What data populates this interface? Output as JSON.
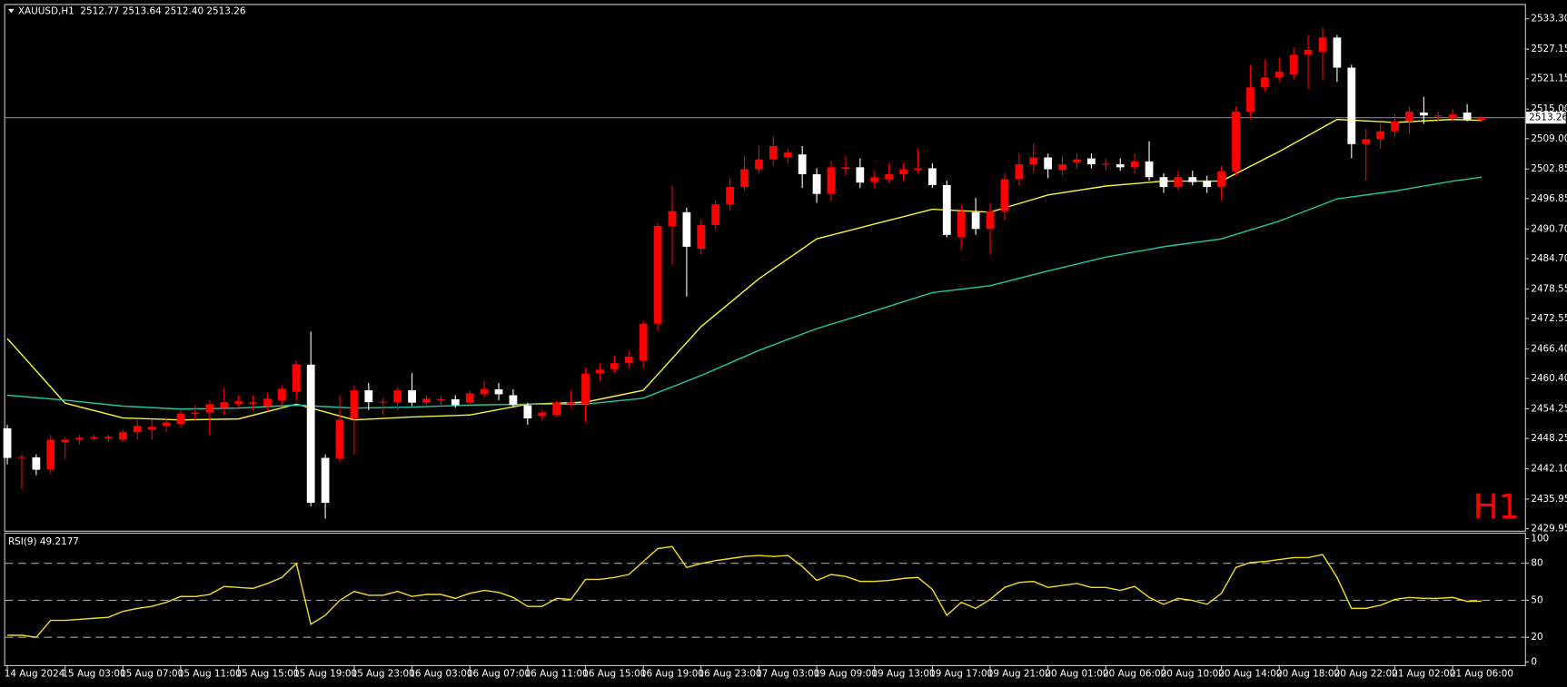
{
  "chart_data": [
    {
      "type": "candlestick",
      "title": "XAUUSD,H1  2512.77 2513.64 2512.40 2513.26",
      "annotation": "H1",
      "up_color": "#ff0000",
      "down_color": "#ffffff",
      "annotation_color": "#ff0000",
      "xlim": [
        -0.15,
        105
      ],
      "ylim": [
        2429.55,
        2536.1
      ],
      "yticks": [
        {
          "value": 2533.3,
          "label": "2533.30"
        },
        2527.15,
        2521.15,
        {
          "value": 2515,
          "label": "2515.00"
        },
        {
          "value": 2509,
          "label": "2509.00"
        },
        2502.85,
        2496.85,
        {
          "value": 2490.7,
          "label": "2490.70"
        },
        {
          "value": 2484.7,
          "label": "2484.70"
        },
        2478.55,
        2472.55,
        {
          "value": 2466.4,
          "label": "2466.40"
        },
        {
          "value": 2460.4,
          "label": "2460.40"
        },
        2454.25,
        2448.25,
        {
          "value": 2442.1,
          "label": "2442.10"
        },
        2435.95,
        2429.95
      ],
      "current_price": 2513.26,
      "current_price_color": "#778899",
      "open": [
        2450.3,
        2444.3,
        2444.4,
        2442,
        2447.5,
        2448,
        2448.2,
        2448.3,
        2448,
        2449.5,
        2450,
        2450.8,
        2451.2,
        2453.2,
        2453.5,
        2454.5,
        2455.3,
        2455.3,
        2454.8,
        2456,
        2457.7,
        2463.2,
        2444.3,
        2444.2,
        2452.3,
        2458,
        2455.5,
        2455.6,
        2458,
        2455.5,
        2456,
        2456.2,
        2455.5,
        2457.2,
        2458.2,
        2457,
        2455,
        2452.8,
        2453,
        2455.2,
        2455.2,
        2461.5,
        2462.3,
        2463.5,
        2464,
        2471.5,
        2491.2,
        2494.1,
        2486.7,
        2491.5,
        2495.7,
        2499.2,
        2502.8,
        2504.8,
        2505.2,
        2505.8,
        2501.8,
        2497.8,
        2502.9,
        2503.2,
        2500.2,
        2500.7,
        2501.8,
        2502.7,
        2503,
        2499.6,
        2489.1,
        2494.1,
        2490.7,
        2494.3,
        2500.8,
        2503.8,
        2505.2,
        2502.7,
        2504.2,
        2505,
        2503.7,
        2503.8,
        2503.2,
        2504.4,
        2501.2,
        2499.2,
        2501.2,
        2500.4,
        2499.2,
        2502.4,
        2514.5,
        2519.4,
        2521.4,
        2522,
        2526,
        2526.6,
        2529.5,
        2523.4,
        2507.9,
        2508.9,
        2510.5,
        2512.5,
        2514.3,
        2513.5,
        2513.1,
        2514.3,
        2512.77
      ],
      "high": [
        2451,
        2445,
        2445,
        2449,
        2448.5,
        2449,
        2449,
        2449,
        2450,
        2452,
        2452,
        2452.5,
        2454,
        2455,
        2456,
        2458.5,
        2457,
        2457,
        2457.5,
        2459,
        2464,
        2469.9,
        2445,
        2457,
        2459,
        2459.5,
        2456.5,
        2458.5,
        2461.5,
        2457,
        2457,
        2457,
        2458,
        2460,
        2459.5,
        2458.2,
        2455.5,
        2454,
        2456,
        2458,
        2462.5,
        2463.5,
        2465,
        2466,
        2472,
        2492,
        2499.5,
        2495,
        2492.5,
        2496.5,
        2501,
        2505.5,
        2507.5,
        2509.5,
        2507,
        2507.5,
        2503,
        2504.5,
        2505.5,
        2505,
        2502.5,
        2504,
        2504,
        2507,
        2504,
        2500.5,
        2495.5,
        2497,
        2496,
        2502,
        2506,
        2508,
        2506,
        2505.5,
        2506,
        2506,
        2505,
        2505,
        2506,
        2508.5,
        2502,
        2502.5,
        2502.5,
        2501.5,
        2503.5,
        2515.5,
        2524,
        2525,
        2525.5,
        2527.5,
        2530,
        2531.5,
        2530,
        2524,
        2511,
        2512,
        2514,
        2515.5,
        2517.5,
        2514.5,
        2515,
        2516,
        2513.64
      ],
      "low": [
        2443,
        2438,
        2440.8,
        2441,
        2444,
        2447,
        2447.8,
        2447.5,
        2447.5,
        2448,
        2448,
        2449.5,
        2450.5,
        2452,
        2449,
        2453,
        2454.5,
        2454,
        2454,
        2455,
        2456,
        2434.5,
        2432,
        2443.5,
        2445,
        2454,
        2453,
        2454,
        2454.8,
        2454.5,
        2455,
        2454.5,
        2455,
        2456.5,
        2456,
        2454.5,
        2451,
        2452,
        2452.5,
        2454.5,
        2451.5,
        2460,
        2461.5,
        2462.5,
        2462.5,
        2470,
        2483.5,
        2477,
        2485.5,
        2490.5,
        2494.5,
        2498.5,
        2502,
        2503.5,
        2504,
        2499,
        2496,
        2496.5,
        2501.5,
        2499,
        2499,
        2500,
        2500.5,
        2502,
        2499,
        2489,
        2486.5,
        2489.5,
        2485.5,
        2492.5,
        2499.5,
        2502,
        2501,
        2501.5,
        2503,
        2503,
        2502.5,
        2502.5,
        2502,
        2500.5,
        2498,
        2498.5,
        2499.5,
        2498,
        2496.5,
        2501.5,
        2513,
        2518.5,
        2520.5,
        2521,
        2519,
        2521,
        2520.5,
        2505,
        2500.5,
        2507,
        2509.5,
        2510,
        2512,
        2512.5,
        2512.5,
        2512.5,
        2512.4
      ],
      "close": [
        2444.3,
        2444.5,
        2441.9,
        2448,
        2448,
        2448.4,
        2448.5,
        2448.6,
        2449.5,
        2450.8,
        2450.6,
        2451.5,
        2453.3,
        2453.5,
        2455.2,
        2455.6,
        2455.8,
        2455.6,
        2456.3,
        2458.3,
        2463.3,
        2435.2,
        2435.2,
        2452,
        2458,
        2455.6,
        2455.7,
        2458,
        2455.5,
        2456.3,
        2456.2,
        2455,
        2457.4,
        2458.3,
        2457.2,
        2455,
        2452.3,
        2453.5,
        2455.5,
        2455.6,
        2461.4,
        2462.2,
        2463.5,
        2464.8,
        2471.5,
        2491.3,
        2494.3,
        2487.1,
        2491.5,
        2495.7,
        2499.2,
        2502.8,
        2504.8,
        2507.5,
        2506.2,
        2501.8,
        2497.8,
        2503.2,
        2503.2,
        2500.1,
        2501.2,
        2501.8,
        2502.8,
        2503,
        2499.6,
        2489.5,
        2494.3,
        2490.7,
        2494.3,
        2500.8,
        2503.8,
        2505.2,
        2502.8,
        2503.8,
        2504.8,
        2503.8,
        2503.9,
        2503.2,
        2504.4,
        2501.2,
        2499.2,
        2501.2,
        2500.2,
        2499.2,
        2502.4,
        2514.5,
        2519.4,
        2521.4,
        2522.6,
        2526,
        2527,
        2529.5,
        2523.4,
        2507.9,
        2508.9,
        2510.5,
        2512.5,
        2514.5,
        2513.7,
        2513.7,
        2513.9,
        2512.9,
        2513.26
      ],
      "series": [
        {
          "color": "#f5f532",
          "x": [
            0,
            4,
            8,
            12,
            16,
            20,
            24,
            28,
            32,
            36,
            40,
            44,
            48,
            52,
            56,
            60,
            64,
            68,
            72,
            76,
            80,
            84,
            88,
            92,
            96,
            100,
            102
          ],
          "values": [
            2468.5,
            2455.4,
            2452.4,
            2452,
            2452.2,
            2455.2,
            2452,
            2452.6,
            2453,
            2455.2,
            2455.6,
            2458,
            2470.9,
            2480.6,
            2488.7,
            2491.7,
            2494.7,
            2494.1,
            2497.6,
            2499.4,
            2500.4,
            2500.4,
            2506.4,
            2512.9,
            2512.3,
            2512.9,
            2512.7
          ]
        },
        {
          "color": "#20c8a0",
          "x": [
            0,
            4,
            8,
            12,
            16,
            20,
            24,
            28,
            32,
            36,
            40,
            44,
            48,
            52,
            56,
            60,
            64,
            68,
            72,
            76,
            80,
            84,
            88,
            92,
            96,
            100,
            102
          ],
          "values": [
            2457,
            2456,
            2454.8,
            2454.2,
            2454.4,
            2455,
            2454.4,
            2454.6,
            2455,
            2455.2,
            2455.2,
            2456.4,
            2461,
            2466.1,
            2470.5,
            2474.1,
            2477.8,
            2479.2,
            2482.2,
            2485,
            2487.1,
            2488.7,
            2492.3,
            2496.8,
            2498.4,
            2500.4,
            2501.2
          ]
        }
      ]
    },
    {
      "type": "line",
      "title": "RSI(9) 49.2177",
      "color": "#f0dc1e",
      "xlim": [
        -0.15,
        105
      ],
      "ylim": [
        -2.6,
        104
      ],
      "yticks": [
        100,
        80,
        50,
        20,
        0
      ],
      "levels": [
        80,
        50,
        20
      ],
      "xticks": [
        {
          "value": 0,
          "label": "14 Aug 2024"
        },
        {
          "value": 4,
          "label": "15 Aug 03:00"
        },
        {
          "value": 8,
          "label": "15 Aug 07:00"
        },
        {
          "value": 12,
          "label": "15 Aug 11:00"
        },
        {
          "value": 16,
          "label": "15 Aug 15:00"
        },
        {
          "value": 20,
          "label": "15 Aug 19:00"
        },
        {
          "value": 24,
          "label": "15 Aug 23:00"
        },
        {
          "value": 28,
          "label": "16 Aug 03:00"
        },
        {
          "value": 32,
          "label": "16 Aug 07:00"
        },
        {
          "value": 36,
          "label": "16 Aug 11:00"
        },
        {
          "value": 40,
          "label": "16 Aug 15:00"
        },
        {
          "value": 44,
          "label": "16 Aug 19:00"
        },
        {
          "value": 48,
          "label": "16 Aug 23:00"
        },
        {
          "value": 52,
          "label": "17 Aug 03:00"
        },
        {
          "value": 56,
          "label": "19 Aug 09:00"
        },
        {
          "value": 60,
          "label": "19 Aug 13:00"
        },
        {
          "value": 64,
          "label": "19 Aug 17:00"
        },
        {
          "value": 68,
          "label": "19 Aug 21:00"
        },
        {
          "value": 72,
          "label": "20 Aug 01:00"
        },
        {
          "value": 76,
          "label": "20 Aug 06:00"
        },
        {
          "value": 80,
          "label": "20 Aug 10:00"
        },
        {
          "value": 84,
          "label": "20 Aug 14:00"
        },
        {
          "value": 88,
          "label": "20 Aug 18:00"
        },
        {
          "value": 92,
          "label": "20 Aug 22:00"
        },
        {
          "value": 96,
          "label": "21 Aug 02:00"
        },
        {
          "value": 100,
          "label": "21 Aug 06:00"
        }
      ],
      "values": [
        21.6,
        21.6,
        20,
        33.7,
        33.7,
        34.5,
        35.4,
        36.2,
        41,
        43.4,
        45,
        48.3,
        53.1,
        53,
        54.7,
        61.2,
        60.4,
        59.6,
        63.6,
        68.5,
        79.8,
        30.5,
        37.8,
        49.9,
        57.2,
        54,
        54,
        57.2,
        53.1,
        54.7,
        54.7,
        51.5,
        55.6,
        58,
        56.4,
        52.3,
        45,
        45,
        51.5,
        50.7,
        66.9,
        66.9,
        68.5,
        70.9,
        81.4,
        91.9,
        93.5,
        76.6,
        79.8,
        82.2,
        83.8,
        85.5,
        86.3,
        85.5,
        86.3,
        77.4,
        66.1,
        70.9,
        69.3,
        65.3,
        65.3,
        66.1,
        67.7,
        68.5,
        58.8,
        37.8,
        48.3,
        43.4,
        50.7,
        60.4,
        64.4,
        65.3,
        60.4,
        62,
        63.6,
        60.4,
        60.4,
        58,
        61.2,
        52.3,
        46.7,
        51.5,
        49.9,
        46.7,
        55.6,
        76.6,
        80.6,
        81.4,
        83,
        84.6,
        84.6,
        87.1,
        68.5,
        43.4,
        43.4,
        45.9,
        50.7,
        52.3,
        51.5,
        51.5,
        52.3,
        49.1,
        49.2177
      ]
    }
  ]
}
